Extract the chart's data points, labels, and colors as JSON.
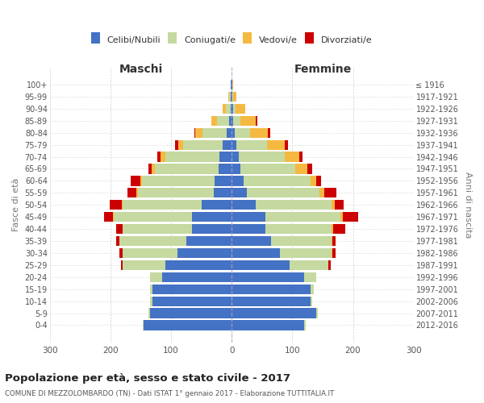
{
  "age_groups": [
    "0-4",
    "5-9",
    "10-14",
    "15-19",
    "20-24",
    "25-29",
    "30-34",
    "35-39",
    "40-44",
    "45-49",
    "50-54",
    "55-59",
    "60-64",
    "65-69",
    "70-74",
    "75-79",
    "80-84",
    "85-89",
    "90-94",
    "95-99",
    "100+"
  ],
  "birth_years": [
    "2012-2016",
    "2007-2011",
    "2002-2006",
    "1997-2001",
    "1992-1996",
    "1987-1991",
    "1982-1986",
    "1977-1981",
    "1972-1976",
    "1967-1971",
    "1962-1966",
    "1957-1961",
    "1952-1956",
    "1947-1951",
    "1942-1946",
    "1937-1941",
    "1932-1936",
    "1927-1931",
    "1922-1926",
    "1917-1921",
    "≤ 1916"
  ],
  "males": {
    "celibi": [
      145,
      135,
      130,
      130,
      115,
      110,
      90,
      75,
      65,
      65,
      50,
      30,
      28,
      22,
      20,
      15,
      8,
      4,
      2,
      1,
      1
    ],
    "coniugati": [
      2,
      2,
      4,
      5,
      20,
      70,
      90,
      110,
      115,
      130,
      130,
      125,
      120,
      105,
      90,
      65,
      40,
      20,
      8,
      3,
      0
    ],
    "vedovi": [
      0,
      0,
      0,
      0,
      0,
      0,
      0,
      0,
      0,
      1,
      1,
      2,
      3,
      5,
      8,
      8,
      12,
      10,
      5,
      2,
      0
    ],
    "divorziati": [
      0,
      0,
      0,
      0,
      0,
      3,
      5,
      5,
      10,
      15,
      20,
      15,
      15,
      5,
      5,
      5,
      2,
      0,
      0,
      0,
      0
    ]
  },
  "females": {
    "nubili": [
      120,
      140,
      130,
      130,
      120,
      95,
      80,
      65,
      55,
      55,
      40,
      25,
      20,
      15,
      12,
      8,
      5,
      3,
      2,
      1,
      1
    ],
    "coniugate": [
      2,
      2,
      3,
      5,
      20,
      65,
      85,
      100,
      110,
      125,
      125,
      120,
      110,
      90,
      75,
      50,
      25,
      12,
      5,
      2,
      0
    ],
    "vedove": [
      0,
      0,
      0,
      0,
      0,
      0,
      1,
      1,
      2,
      3,
      5,
      8,
      10,
      20,
      25,
      30,
      30,
      25,
      15,
      5,
      1
    ],
    "divorziate": [
      0,
      0,
      0,
      0,
      0,
      3,
      5,
      5,
      20,
      25,
      15,
      20,
      8,
      8,
      5,
      5,
      3,
      2,
      0,
      0,
      0
    ]
  },
  "colors": {
    "celibi_nubili": "#4472c4",
    "coniugati": "#c5d9a0",
    "vedovi": "#f5b942",
    "divorziati": "#cc0000"
  },
  "title": "Popolazione per età, sesso e stato civile - 2017",
  "subtitle": "COMUNE DI MEZZOLOMBARDO (TN) - Dati ISTAT 1° gennaio 2017 - Elaborazione TUTTITALIA.IT",
  "xlabel_left": "Maschi",
  "xlabel_right": "Femmine",
  "ylabel_left": "Fasce di età",
  "ylabel_right": "Anni di nascita",
  "xlim": 300,
  "legend_labels": [
    "Celibi/Nubili",
    "Coniugati/e",
    "Vedovi/e",
    "Divorziati/e"
  ],
  "background_color": "#ffffff",
  "grid_color": "#cccccc"
}
